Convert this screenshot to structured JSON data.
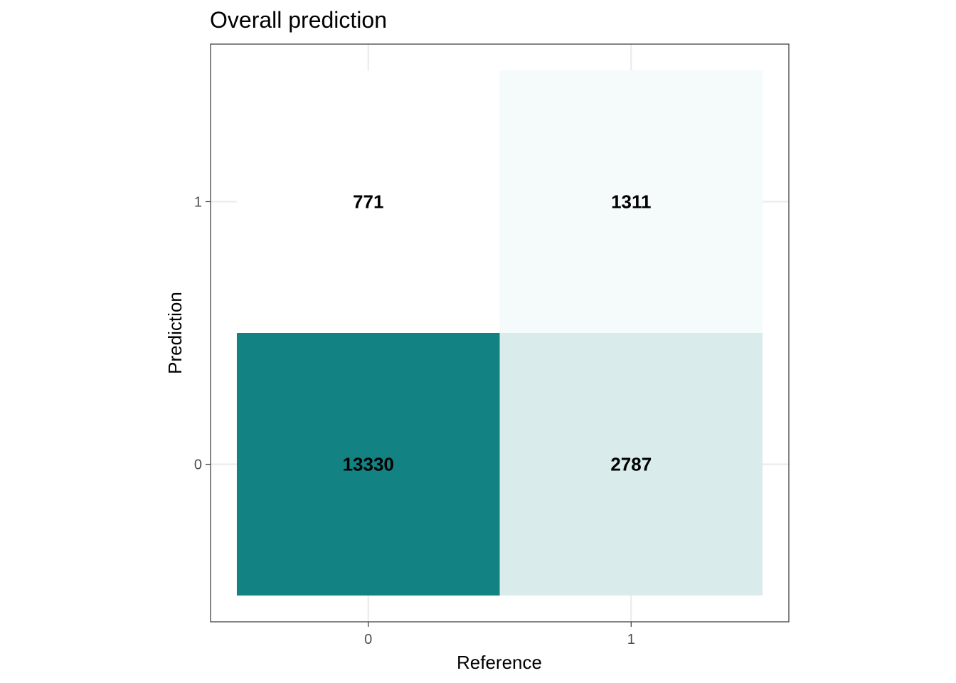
{
  "chart_data": {
    "type": "heatmap",
    "title": "Overall prediction",
    "xlabel": "Reference",
    "ylabel": "Prediction",
    "x_categories": [
      "0",
      "1"
    ],
    "y_categories": [
      "0",
      "1"
    ],
    "cells": [
      {
        "reference": "0",
        "prediction": "0",
        "value": 13330
      },
      {
        "reference": "1",
        "prediction": "0",
        "value": 2787
      },
      {
        "reference": "0",
        "prediction": "1",
        "value": 771
      },
      {
        "reference": "1",
        "prediction": "1",
        "value": 1311
      }
    ],
    "cell_labels": [
      "13330",
      "2787",
      "771",
      "1311"
    ],
    "color_low": "#ffffff",
    "color_high": "#138282",
    "grid": true,
    "legend": "none"
  }
}
